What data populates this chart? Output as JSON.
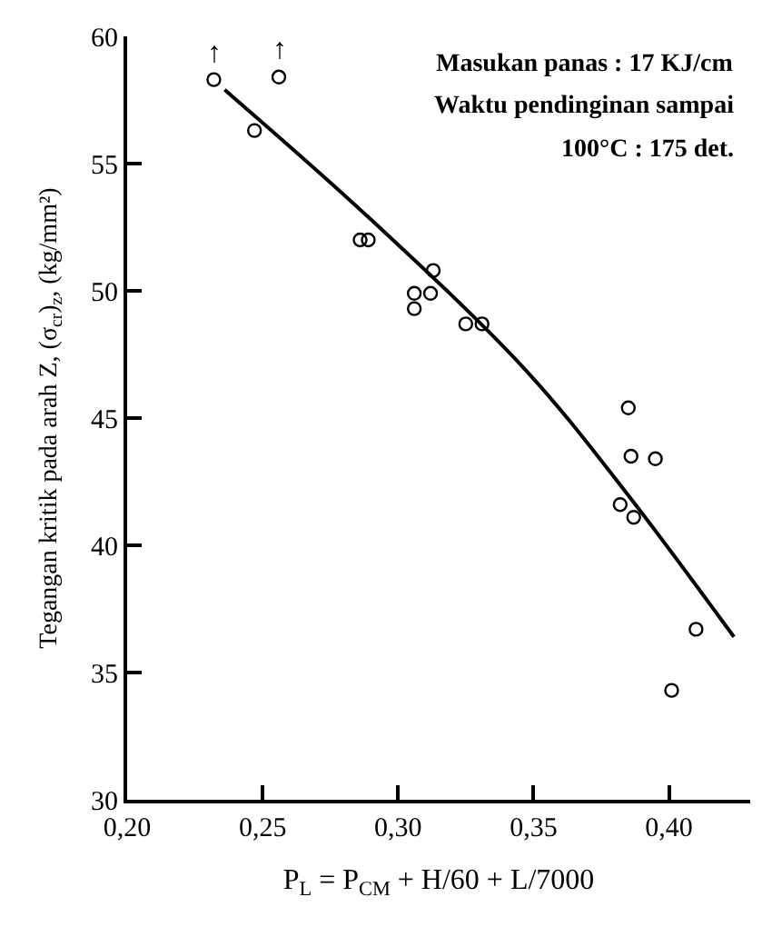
{
  "chart_data": {
    "type": "scatter",
    "ylabel": "Tegangan kritik pada arah Z, (σ$_{cr}$)$_{z}$, (kg/mm²)",
    "xlabel": "P$_{L}$ = P$_{CM}$ + H/60 + L/7000",
    "xlim": [
      0.2,
      0.43
    ],
    "ylim": [
      30,
      60
    ],
    "xticks": [
      {
        "value": 0.2,
        "label": "0,20"
      },
      {
        "value": 0.25,
        "label": "0,25"
      },
      {
        "value": 0.3,
        "label": "0,30"
      },
      {
        "value": 0.35,
        "label": "0,35"
      },
      {
        "value": 0.4,
        "label": "0,40"
      }
    ],
    "yticks": [
      30,
      35,
      40,
      45,
      50,
      55,
      60
    ],
    "marker": "circle",
    "series": [
      {
        "color": "#000000",
        "x": [
          0.232,
          0.256,
          0.247,
          0.286,
          0.289,
          0.313,
          0.306,
          0.306,
          0.312,
          0.325,
          0.331,
          0.385,
          0.386,
          0.395,
          0.382,
          0.387,
          0.41,
          0.401
        ],
        "values": [
          58.3,
          58.4,
          56.3,
          52.0,
          52.0,
          50.8,
          49.9,
          49.3,
          49.9,
          48.7,
          48.7,
          45.4,
          43.5,
          43.4,
          41.6,
          41.1,
          36.7,
          34.3
        ]
      },
      {
        "type": "line",
        "color": "#000000",
        "marker": "none",
        "x": [
          0.236,
          0.289,
          0.347,
          0.384,
          0.424
        ],
        "values": [
          57.9,
          52.9,
          46.9,
          42.1,
          36.4
        ]
      }
    ],
    "annotations": [
      "Masukan panas : 17 KJ/cm",
      "Waktu pendinginan sampai",
      "100°C : 175 det.",
      {
        "text": "↑",
        "x": 0.232,
        "y": 58.3
      },
      {
        "text": "↑",
        "x": 0.256,
        "y": 58.4
      }
    ]
  }
}
